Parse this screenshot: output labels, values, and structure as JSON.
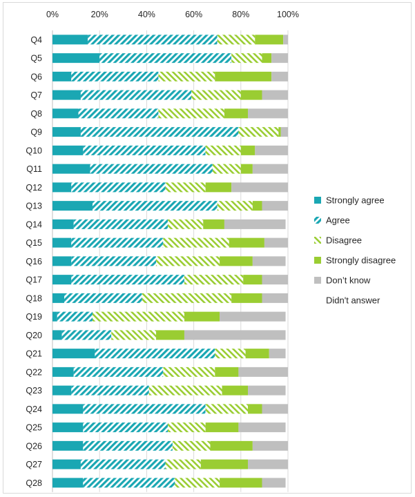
{
  "chart_data": {
    "type": "bar",
    "orientation": "horizontal",
    "stacked": true,
    "percent": true,
    "title": "",
    "xlabel": "",
    "ylabel": "",
    "xlim": [
      0,
      100
    ],
    "x_ticks": [
      "0%",
      "20%",
      "40%",
      "60%",
      "80%",
      "100%"
    ],
    "x_axis_position": "top",
    "grid": true,
    "legend_position": "right",
    "categories": [
      "Q4",
      "Q5",
      "Q6",
      "Q7",
      "Q8",
      "Q9",
      "Q10",
      "Q11",
      "Q12",
      "Q13",
      "Q14",
      "Q15",
      "Q16",
      "Q17",
      "Q18",
      "Q19",
      "Q20",
      "Q21",
      "Q22",
      "Q23",
      "Q24",
      "Q25",
      "Q26",
      "Q27",
      "Q28"
    ],
    "series": [
      {
        "name": "Strongly agree",
        "color": "#1aa7b3",
        "pattern": "solid",
        "values": [
          15,
          20,
          8,
          12,
          11,
          12,
          13,
          16,
          8,
          17,
          9,
          8,
          8,
          8,
          5,
          2,
          4,
          18,
          9,
          8,
          13,
          13,
          13,
          12,
          13
        ]
      },
      {
        "name": "Agree",
        "color": "#1aa7b3",
        "pattern": "hatch",
        "values": [
          55,
          56,
          37,
          47,
          34,
          67,
          52,
          52,
          40,
          53,
          40,
          39,
          36,
          48,
          33,
          15,
          21,
          51,
          38,
          33,
          52,
          36,
          38,
          36,
          39
        ]
      },
      {
        "name": "Disagree",
        "color": "#9acd32",
        "pattern": "hatch",
        "values": [
          16,
          13,
          24,
          21,
          28,
          17,
          15,
          12,
          17,
          15,
          15,
          28,
          27,
          25,
          38,
          39,
          19,
          13,
          22,
          31,
          18,
          16,
          16,
          15,
          19
        ]
      },
      {
        "name": "Strongly disagree",
        "color": "#9acd32",
        "pattern": "solid",
        "values": [
          12,
          4,
          24,
          9,
          10,
          1,
          6,
          5,
          11,
          4,
          9,
          15,
          14,
          8,
          13,
          15,
          12,
          10,
          10,
          11,
          6,
          14,
          18,
          20,
          18
        ]
      },
      {
        "name": "Don’t know",
        "color": "#bfbfbf",
        "pattern": "solid",
        "values": [
          2,
          7,
          7,
          11,
          17,
          3,
          14,
          15,
          24,
          11,
          26,
          10,
          14,
          11,
          11,
          28,
          43,
          7,
          21,
          16,
          11,
          20,
          15,
          17,
          10
        ]
      },
      {
        "name": "Didn't answer",
        "color": "#ffffff",
        "pattern": "none",
        "values": [
          0,
          0,
          0,
          0,
          0,
          0,
          0,
          0,
          0,
          0,
          0,
          0,
          0,
          0,
          0,
          0,
          0,
          0,
          0,
          0,
          0,
          0,
          0,
          0,
          0
        ]
      }
    ]
  }
}
